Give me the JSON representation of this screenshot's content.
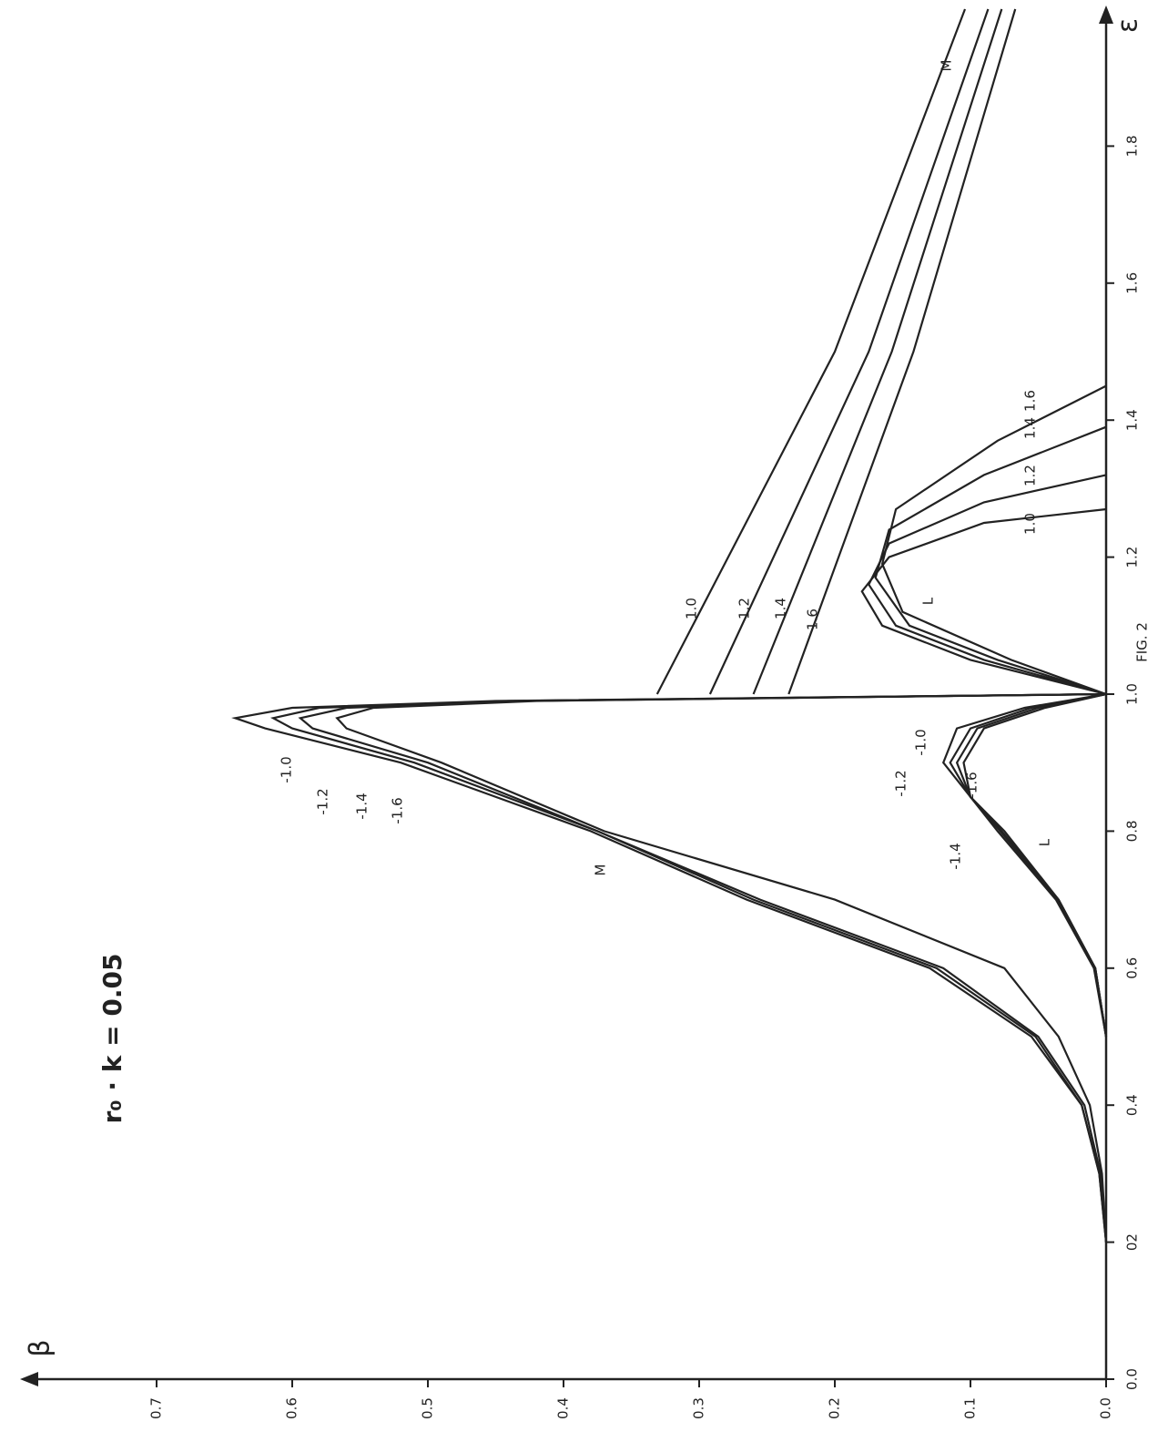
{
  "chart_data": {
    "type": "line",
    "x_label": "ε",
    "y_label": "β",
    "annotations": [
      "r₀ · k = 0.05",
      "FIG. 2",
      "M",
      "L",
      "M",
      "L"
    ],
    "xlim": [
      0,
      2.0
    ],
    "xticks": [
      {
        "value": 0,
        "label": "0.0"
      },
      {
        "value": 0.2,
        "label": "02"
      },
      0.4,
      0.6,
      0.8,
      {
        "value": 1,
        "label": "1.0"
      },
      1.2,
      1.4,
      1.6,
      1.8
    ],
    "ylim": [
      0,
      0.8
    ],
    "yticks": [
      {
        "value": 0,
        "label": "0.0"
      },
      0.1,
      0.2,
      0.3,
      0.4,
      0.5,
      0.6,
      0.7
    ],
    "series": [
      {
        "name": "-1.0",
        "color": "#222",
        "x": [
          0.2,
          0.3,
          0.4,
          0.5,
          0.6,
          0.7,
          0.8,
          0.9,
          0.95,
          0.965,
          0.98,
          0.99,
          1.0
        ],
        "values": [
          0,
          0.005,
          0.018,
          0.055,
          0.13,
          0.265,
          0.38,
          0.52,
          0.62,
          0.642,
          0.6,
          0.45,
          0
        ]
      },
      {
        "name": "-1.2",
        "color": "#222",
        "x": [
          0.2,
          0.3,
          0.4,
          0.5,
          0.6,
          0.7,
          0.8,
          0.9,
          0.95,
          0.965,
          0.98,
          0.99,
          1.0
        ],
        "values": [
          0,
          0.005,
          0.018,
          0.052,
          0.125,
          0.26,
          0.375,
          0.51,
          0.6,
          0.614,
          0.58,
          0.44,
          0
        ]
      },
      {
        "name": "-1.4",
        "color": "#222",
        "x": [
          0.2,
          0.3,
          0.4,
          0.5,
          0.6,
          0.7,
          0.8,
          0.9,
          0.95,
          0.965,
          0.98,
          0.99,
          1.0
        ],
        "values": [
          0,
          0.004,
          0.016,
          0.05,
          0.12,
          0.255,
          0.375,
          0.5,
          0.585,
          0.594,
          0.56,
          0.43,
          0
        ]
      },
      {
        "name": "-1.6",
        "color": "#222",
        "x": [
          0.2,
          0.3,
          0.4,
          0.5,
          0.6,
          0.7,
          0.8,
          0.9,
          0.95,
          0.965,
          0.98,
          0.99,
          1.0
        ],
        "values": [
          0,
          0.003,
          0.012,
          0.035,
          0.075,
          0.2,
          0.37,
          0.49,
          0.56,
          0.567,
          0.54,
          0.42,
          0
        ]
      },
      {
        "name": "-1.0",
        "color": "#222",
        "x": [
          0.5,
          0.6,
          0.7,
          0.8,
          0.85,
          0.9,
          0.95,
          0.98,
          1.0
        ],
        "values": [
          0,
          0.008,
          0.035,
          0.075,
          0.1,
          0.12,
          0.11,
          0.06,
          0
        ]
      },
      {
        "name": "-1.2",
        "color": "#222",
        "x": [
          0.5,
          0.6,
          0.7,
          0.8,
          0.85,
          0.9,
          0.95,
          0.98,
          1.0
        ],
        "values": [
          0,
          0.008,
          0.035,
          0.077,
          0.1,
          0.115,
          0.1,
          0.055,
          0
        ]
      },
      {
        "name": "-1.4",
        "color": "#222",
        "x": [
          0.5,
          0.6,
          0.7,
          0.8,
          0.85,
          0.9,
          0.95,
          0.98,
          1.0
        ],
        "values": [
          0,
          0.008,
          0.036,
          0.078,
          0.1,
          0.11,
          0.095,
          0.05,
          0
        ]
      },
      {
        "name": "-1.6",
        "color": "#222",
        "x": [
          0.5,
          0.6,
          0.7,
          0.8,
          0.85,
          0.9,
          0.95,
          0.98,
          1.0
        ],
        "values": [
          0,
          0.009,
          0.037,
          0.08,
          0.1,
          0.105,
          0.09,
          0.045,
          0
        ]
      },
      {
        "name": "1.0",
        "color": "#222",
        "x": [
          1.0,
          1.5,
          2.0
        ],
        "values": [
          0.331,
          0.2,
          0.104
        ]
      },
      {
        "name": "1.2",
        "color": "#222",
        "x": [
          1.0,
          1.5,
          2.0
        ],
        "values": [
          0.292,
          0.175,
          0.087
        ]
      },
      {
        "name": "1.4",
        "color": "#222",
        "x": [
          1.0,
          1.5,
          2.0
        ],
        "values": [
          0.26,
          0.158,
          0.077
        ]
      },
      {
        "name": "1.6",
        "color": "#222",
        "x": [
          1.0,
          1.5,
          2.0
        ],
        "values": [
          0.234,
          0.142,
          0.067
        ]
      },
      {
        "name": "1.0",
        "color": "#222",
        "x": [
          1.0,
          1.05,
          1.1,
          1.15,
          1.2,
          1.25,
          1.27
        ],
        "values": [
          0,
          0.1,
          0.165,
          0.18,
          0.16,
          0.09,
          0
        ]
      },
      {
        "name": "1.2",
        "color": "#222",
        "x": [
          1.0,
          1.05,
          1.1,
          1.16,
          1.22,
          1.28,
          1.32
        ],
        "values": [
          0,
          0.09,
          0.155,
          0.175,
          0.16,
          0.09,
          0
        ]
      },
      {
        "name": "1.4",
        "color": "#222",
        "x": [
          1.0,
          1.05,
          1.1,
          1.17,
          1.24,
          1.32,
          1.39
        ],
        "values": [
          0,
          0.08,
          0.145,
          0.17,
          0.16,
          0.09,
          0
        ]
      },
      {
        "name": "1.6",
        "color": "#222",
        "x": [
          1.0,
          1.05,
          1.12,
          1.19,
          1.27,
          1.37,
          1.45
        ],
        "values": [
          0,
          0.07,
          0.15,
          0.165,
          0.155,
          0.08,
          0
        ]
      }
    ]
  }
}
